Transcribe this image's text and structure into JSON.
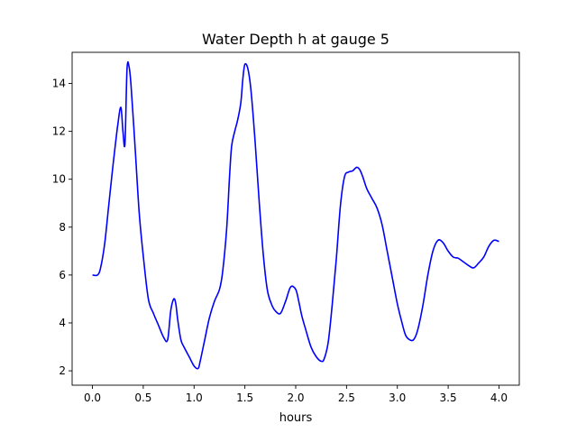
{
  "chart_data": {
    "type": "line",
    "title": "Water Depth h at gauge 5",
    "xlabel": "hours",
    "ylabel": "",
    "xlim": [
      -0.2,
      4.2
    ],
    "ylim": [
      1.4,
      15.3
    ],
    "xticks": [
      0.0,
      0.5,
      1.0,
      1.5,
      2.0,
      2.5,
      3.0,
      3.5,
      4.0
    ],
    "xtick_labels": [
      "0.0",
      "0.5",
      "1.0",
      "1.5",
      "2.0",
      "2.5",
      "3.0",
      "3.5",
      "4.0"
    ],
    "yticks": [
      2,
      4,
      6,
      8,
      10,
      12,
      14
    ],
    "ytick_labels": [
      "2",
      "4",
      "6",
      "8",
      "10",
      "12",
      "14"
    ],
    "grid": false,
    "series": [
      {
        "name": "h",
        "color": "#0000ff",
        "x": [
          0.0,
          0.05,
          0.08,
          0.12,
          0.16,
          0.2,
          0.25,
          0.28,
          0.3,
          0.32,
          0.34,
          0.36,
          0.38,
          0.42,
          0.46,
          0.5,
          0.55,
          0.6,
          0.65,
          0.7,
          0.74,
          0.77,
          0.8,
          0.82,
          0.84,
          0.87,
          0.9,
          0.95,
          1.0,
          1.04,
          1.06,
          1.1,
          1.15,
          1.2,
          1.25,
          1.28,
          1.32,
          1.35,
          1.37,
          1.4,
          1.43,
          1.46,
          1.48,
          1.5,
          1.53,
          1.56,
          1.6,
          1.64,
          1.68,
          1.72,
          1.76,
          1.8,
          1.85,
          1.9,
          1.95,
          2.0,
          2.03,
          2.06,
          2.1,
          2.15,
          2.2,
          2.25,
          2.28,
          2.32,
          2.36,
          2.4,
          2.44,
          2.48,
          2.52,
          2.56,
          2.6,
          2.63,
          2.66,
          2.7,
          2.75,
          2.8,
          2.85,
          2.9,
          2.95,
          3.0,
          3.04,
          3.08,
          3.12,
          3.16,
          3.2,
          3.25,
          3.3,
          3.35,
          3.4,
          3.45,
          3.5,
          3.55,
          3.6,
          3.65,
          3.7,
          3.75,
          3.8,
          3.85,
          3.9,
          3.95,
          4.0
        ],
        "y": [
          6.0,
          6.0,
          6.3,
          7.3,
          8.9,
          10.5,
          12.3,
          13.0,
          12.0,
          11.5,
          14.6,
          14.7,
          13.9,
          11.3,
          8.6,
          6.8,
          5.0,
          4.4,
          3.9,
          3.4,
          3.3,
          4.5,
          5.0,
          4.8,
          4.1,
          3.3,
          3.0,
          2.6,
          2.2,
          2.1,
          2.4,
          3.2,
          4.2,
          4.9,
          5.4,
          6.1,
          7.9,
          10.2,
          11.4,
          12.0,
          12.5,
          13.2,
          14.2,
          14.8,
          14.6,
          13.7,
          11.6,
          9.1,
          6.9,
          5.4,
          4.8,
          4.5,
          4.4,
          4.9,
          5.5,
          5.4,
          4.9,
          4.3,
          3.7,
          3.0,
          2.6,
          2.4,
          2.5,
          3.2,
          4.8,
          6.7,
          8.9,
          10.1,
          10.3,
          10.35,
          10.5,
          10.4,
          10.1,
          9.6,
          9.2,
          8.8,
          8.1,
          7.0,
          5.9,
          4.8,
          4.1,
          3.5,
          3.3,
          3.3,
          3.7,
          4.7,
          6.0,
          7.0,
          7.45,
          7.35,
          7.0,
          6.75,
          6.7,
          6.55,
          6.4,
          6.3,
          6.5,
          6.75,
          7.2,
          7.45,
          7.4
        ]
      }
    ]
  }
}
